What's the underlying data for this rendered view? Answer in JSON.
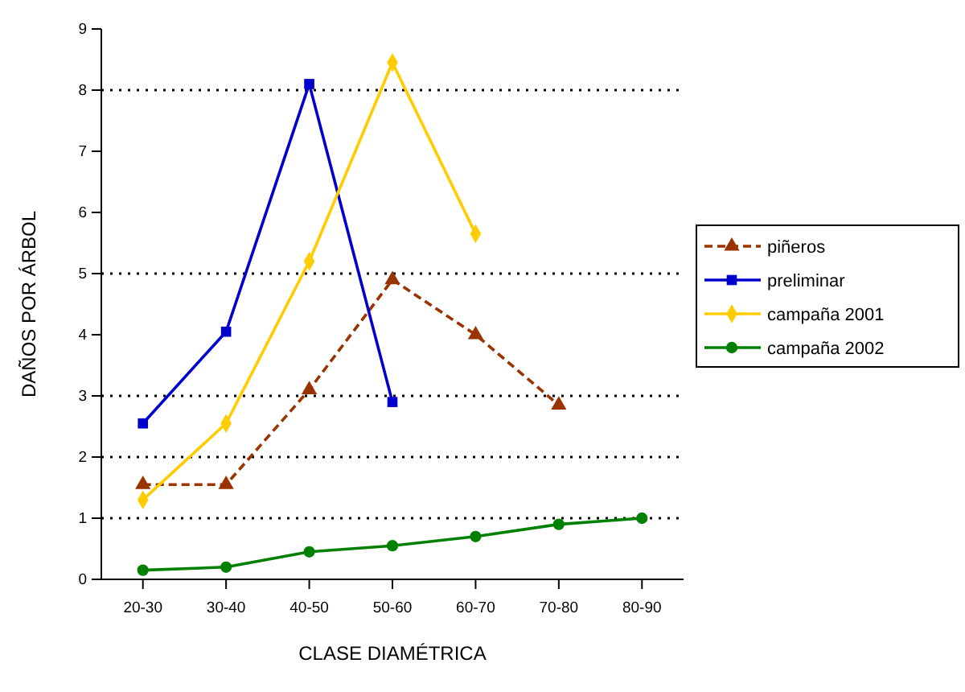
{
  "chart_data": {
    "type": "line",
    "xlabel": "CLASE DIAMÉTRICA",
    "ylabel": "DAÑOS POR ÁRBOL",
    "categories": [
      "20-30",
      "30-40",
      "40-50",
      "50-60",
      "60-70",
      "70-80",
      "80-90"
    ],
    "ylim": [
      0,
      9
    ],
    "yticks": [
      0,
      1,
      2,
      3,
      4,
      5,
      6,
      7,
      8,
      9
    ],
    "legend": "right",
    "ref_lines": [
      {
        "axis": "y",
        "value": 1,
        "line_style": "dotted"
      },
      {
        "axis": "y",
        "value": 2,
        "line_style": "dotted"
      },
      {
        "axis": "y",
        "value": 3,
        "line_style": "dotted"
      },
      {
        "axis": "y",
        "value": 5,
        "line_style": "dotted"
      },
      {
        "axis": "y",
        "value": 8,
        "line_style": "dotted"
      }
    ],
    "series": [
      {
        "name": "piñeros",
        "color": "#993300",
        "marker": "triangle",
        "line_style": "dashed",
        "values": [
          1.55,
          1.55,
          3.1,
          4.9,
          4.0,
          2.85,
          null
        ]
      },
      {
        "name": "preliminar",
        "color": "#0000cc",
        "marker": "square",
        "line_style": "solid",
        "values": [
          2.55,
          4.05,
          8.1,
          2.9,
          null,
          null,
          null
        ]
      },
      {
        "name": "campaña 2001",
        "color": "#ffcc00",
        "marker": "diamond",
        "line_style": "solid",
        "values": [
          1.3,
          2.55,
          5.2,
          8.45,
          5.65,
          null,
          null
        ]
      },
      {
        "name": "campaña 2002",
        "color": "#008000",
        "marker": "circle",
        "line_style": "solid",
        "values": [
          0.15,
          0.2,
          0.45,
          0.55,
          0.7,
          0.9,
          1.0
        ]
      }
    ]
  }
}
